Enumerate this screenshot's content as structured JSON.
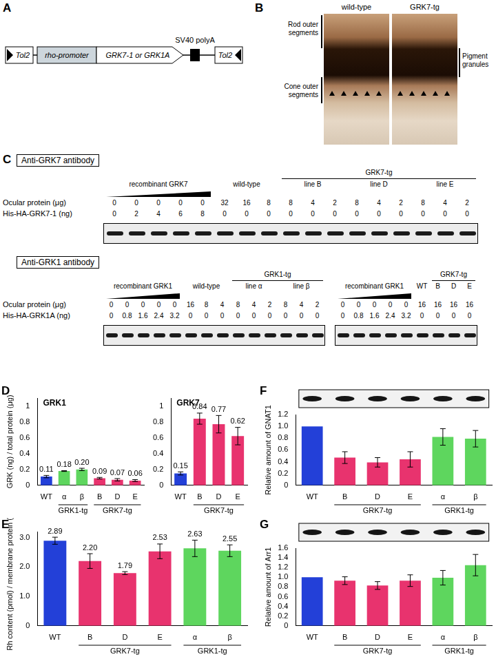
{
  "diagram_a": {
    "panel": "A",
    "left_arm": "Tol2",
    "promoter": "rho-promoter",
    "gene": "GRK7-1 or GRK1A",
    "polyA": "SV40 polyA",
    "right_arm": "Tol2"
  },
  "image_b": {
    "panel": "B",
    "images": [
      "wild-type",
      "GRK7-tg"
    ],
    "left_labels": [
      "Rod outer segments",
      "Cone outer segments"
    ],
    "right_label": "Pigment granules"
  },
  "blots_c": {
    "panel": "C",
    "sections": [
      {
        "title": "Anti-GRK7 antibody",
        "row_labels": [
          "Ocular protein (μg)",
          "His-HA-GRK7-1 (ng)"
        ],
        "blots": [
          {
            "groups": [
              {
                "label": "recombinant GRK7",
                "ocular": [
                  0,
                  0,
                  0,
                  0,
                  0
                ],
                "his": [
                  0,
                  2,
                  4,
                  6,
                  8
                ]
              },
              {
                "label": "wild-type",
                "ocular": [
                  32,
                  16,
                  8
                ],
                "his": [
                  0,
                  0,
                  0
                ]
              },
              {
                "label": "GRK7-tg",
                "subgroups": [
                  {
                    "label": "line B",
                    "ocular": [
                      8,
                      4,
                      2
                    ],
                    "his": [
                      0,
                      0,
                      0
                    ]
                  },
                  {
                    "label": "line D",
                    "ocular": [
                      8,
                      4,
                      2
                    ],
                    "his": [
                      0,
                      0,
                      0
                    ]
                  },
                  {
                    "label": "line E",
                    "ocular": [
                      8,
                      4,
                      2
                    ],
                    "his": [
                      0,
                      0,
                      0
                    ]
                  }
                ]
              }
            ]
          }
        ]
      },
      {
        "title": "Anti-GRK1 antibody",
        "row_labels": [
          "Ocular protein (μg)",
          "His-HA-GRK1A (ng)"
        ],
        "blots": [
          {
            "groups": [
              {
                "label": "recombinant GRK1",
                "ocular": [
                  0,
                  0,
                  0,
                  0,
                  0
                ],
                "his": [
                  0,
                  0.8,
                  1.6,
                  2.4,
                  3.2
                ]
              },
              {
                "label": "wild-type",
                "ocular": [
                  16,
                  8,
                  4
                ],
                "his": [
                  0,
                  0,
                  0
                ]
              },
              {
                "label": "GRK1-tg",
                "subgroups": [
                  {
                    "label": "line α",
                    "ocular": [
                      8,
                      4,
                      2
                    ],
                    "his": [
                      0,
                      0,
                      0
                    ]
                  },
                  {
                    "label": "line β",
                    "ocular": [
                      8,
                      4,
                      2
                    ],
                    "his": [
                      0,
                      0,
                      0
                    ]
                  }
                ]
              }
            ]
          },
          {
            "groups": [
              {
                "label": "recombinant GRK1",
                "ocular": [
                  0,
                  0,
                  0,
                  0,
                  0
                ],
                "his": [
                  0,
                  0.8,
                  1.6,
                  2.4,
                  3.2
                ]
              },
              {
                "label": "WT",
                "ocular": [
                  16
                ],
                "his": [
                  0
                ]
              },
              {
                "label": "GRK7-tg",
                "subgroups": [
                  {
                    "label": "B",
                    "ocular": [
                      16
                    ],
                    "his": [
                      0
                    ]
                  },
                  {
                    "label": "D",
                    "ocular": [
                      16
                    ],
                    "his": [
                      0
                    ]
                  },
                  {
                    "label": "E",
                    "ocular": [
                      16
                    ],
                    "his": [
                      0
                    ]
                  }
                ]
              }
            ]
          }
        ]
      }
    ]
  },
  "chart_data": [
    {
      "panel": "D",
      "type": "bar",
      "title": "GRK1",
      "y_label": "GRK (ng) / total protein (μg)",
      "categories": [
        "WT",
        "α",
        "β",
        "B",
        "D",
        "E"
      ],
      "values": [
        0.11,
        0.18,
        0.2,
        0.09,
        0.07,
        0.06
      ],
      "errors": [
        0.015,
        0.005,
        0.015,
        0.01,
        0.015,
        0.012
      ],
      "data_labels": true,
      "value_labels": [
        "0.11",
        "0.18",
        "0.20",
        "0.09",
        "0.07",
        "0.06"
      ],
      "colors": [
        "#2340d8",
        "#5ed65e",
        "#5ed65e",
        "#e8336e",
        "#e8336e",
        "#e8336e"
      ],
      "annotations": [
        {
          "text": "GRK1-tg",
          "from": "α",
          "to": "β"
        },
        {
          "text": "GRK7-tg",
          "from": "B",
          "to": "E"
        }
      ],
      "ylim": [
        0,
        1.1
      ],
      "yticks": [
        0,
        0.2,
        0.4,
        0.6,
        0.8,
        1
      ],
      "grid": false
    },
    {
      "type": "bar",
      "title": "GRK7",
      "categories": [
        "WT",
        "B",
        "D",
        "E"
      ],
      "values": [
        0.15,
        0.84,
        0.77,
        0.62
      ],
      "errors": [
        0.02,
        0.07,
        0.11,
        0.11
      ],
      "data_labels": true,
      "value_labels": [
        "0.15",
        "0.84",
        "0.77",
        "0.62"
      ],
      "colors": [
        "#2340d8",
        "#e8336e",
        "#e8336e",
        "#e8336e"
      ],
      "annotations": [
        {
          "text": "GRK7-tg",
          "from": "B",
          "to": "E"
        }
      ],
      "ylim": [
        0,
        1.1
      ],
      "yticks": [
        0,
        0.2,
        0.4,
        0.6,
        0.8,
        1
      ],
      "grid": false
    },
    {
      "panel": "E",
      "type": "bar",
      "y_label": "Rh content (pmol) / membrane protein (μg)",
      "categories": [
        "WT",
        "B",
        "D",
        "E",
        "α",
        "β"
      ],
      "values": [
        2.89,
        2.2,
        1.79,
        2.53,
        2.63,
        2.55
      ],
      "errors": [
        0.12,
        0.25,
        0.05,
        0.25,
        0.28,
        0.2
      ],
      "data_labels": true,
      "value_labels": [
        "2.89",
        "2.20",
        "1.79",
        "2.53",
        "2.63",
        "2.55"
      ],
      "colors": [
        "#2340d8",
        "#e8336e",
        "#e8336e",
        "#e8336e",
        "#5ed65e",
        "#5ed65e"
      ],
      "annotations": [
        {
          "text": "GRK7-tg",
          "from": "B",
          "to": "E"
        },
        {
          "text": "GRK1-tg",
          "from": "α",
          "to": "β"
        }
      ],
      "ylim": [
        0,
        3.2
      ],
      "yticks": [
        0,
        {
          "value": 1,
          "label": "1.0"
        },
        {
          "value": 2,
          "label": "2.0"
        },
        {
          "value": 3,
          "label": "3.0"
        }
      ],
      "grid": false
    },
    {
      "panel": "F",
      "type": "bar",
      "y_label": "Relative amount of GNAT1",
      "categories": [
        "WT",
        "B",
        "D",
        "E",
        "α",
        "β"
      ],
      "values": [
        1,
        0.47,
        0.39,
        0.44,
        0.82,
        0.79
      ],
      "errors": [
        0,
        0.1,
        0.08,
        0.13,
        0.14,
        0.14
      ],
      "data_labels": false,
      "colors": [
        "#2340d8",
        "#e8336e",
        "#e8336e",
        "#e8336e",
        "#5ed65e",
        "#5ed65e"
      ],
      "annotations": [
        {
          "text": "GRK7-tg",
          "from": "B",
          "to": "E"
        },
        {
          "text": "GRK1-tg",
          "from": "α",
          "to": "β"
        }
      ],
      "ylim": [
        0,
        1.2
      ],
      "yticks": [
        0,
        0.2,
        0.4,
        0.6,
        0.8,
        {
          "value": 1,
          "label": "1.0"
        },
        1.2
      ],
      "grid": false
    },
    {
      "panel": "G",
      "type": "bar",
      "y_label": "Relative amount of Arr1",
      "categories": [
        "WT",
        "B",
        "D",
        "E",
        "α",
        "β"
      ],
      "values": [
        1,
        0.93,
        0.83,
        0.93,
        0.99,
        1.25
      ],
      "errors": [
        0,
        0.08,
        0.08,
        0.12,
        0.15,
        0.22
      ],
      "data_labels": false,
      "colors": [
        "#2340d8",
        "#e8336e",
        "#e8336e",
        "#e8336e",
        "#5ed65e",
        "#5ed65e"
      ],
      "annotations": [
        {
          "text": "GRK7-tg",
          "from": "B",
          "to": "E"
        },
        {
          "text": "GRK1-tg",
          "from": "α",
          "to": "β"
        }
      ],
      "ylim": [
        0,
        1.6
      ],
      "yticks": [
        0,
        0.2,
        0.4,
        0.6,
        0.8,
        {
          "value": 1,
          "label": "1.0"
        },
        1.2,
        1.4,
        1.6
      ],
      "grid": false
    }
  ]
}
